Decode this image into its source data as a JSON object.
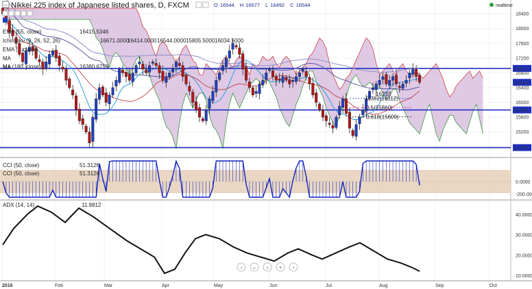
{
  "header": {
    "title": "Nikkei 225 index of Japanese listed shares, D, FXCM",
    "ohlc": [
      {
        "key": "O",
        "value": "16544"
      },
      {
        "key": "H",
        "value": "16577"
      },
      {
        "key": "L",
        "value": "16492"
      },
      {
        "key": "C",
        "value": "16544"
      }
    ],
    "realtime_label": "realtime",
    "realtime_color": "#2e9b3e"
  },
  "indicators": {
    "ema": {
      "label": "EMA (55, close)",
      "value": "16415.5346"
    },
    "ichimoku": {
      "label": "Ichimoku (9, 26, 52, 26)",
      "values": [
        "16671.0000",
        "16414.0000",
        "16544.0000",
        "15805.5000",
        "16034.5000"
      ]
    },
    "ema2": {
      "label": "EMA (…close)"
    },
    "ma_a": {
      "label": "MA"
    },
    "ma_b": {
      "label": "MA"
    },
    "ma180": {
      "label": "MA (180, close)",
      "value": "16380.6759"
    }
  },
  "fib_labels": [
    {
      "text": "0.382(16112)",
      "color": "#1f3fbf"
    },
    {
      "text": "0.5(15860)",
      "color": "#d026b8"
    },
    {
      "text": "0.618(15609)",
      "color": "#222222"
    }
  ],
  "fib_extra": {
    "text": "16233",
    "color": "#1f7fd9"
  },
  "price_axis": {
    "ticks": [
      "18400",
      "18000",
      "17600",
      "17200",
      "16800",
      "16400",
      "16000",
      "15600",
      "15200",
      "14800"
    ],
    "badges": [
      {
        "text": "16921",
        "bg": "#1f2fbf",
        "fg": "#ffffff"
      },
      {
        "text": "16544",
        "bg": "#1f2fbf",
        "fg": "#ffffff"
      },
      {
        "text": "15795",
        "bg": "#1f2fbf",
        "fg": "#ffffff"
      },
      {
        "text": "14776",
        "bg": "#1f2fbf",
        "fg": "#ffffff"
      }
    ]
  },
  "cci": {
    "labels": [
      {
        "text": "CCI (50, close)",
        "value": "51.3126"
      },
      {
        "text": "CCI (50, close)",
        "value": "51.3126"
      }
    ],
    "ticks": [
      "0.0000",
      "-200.0000"
    ]
  },
  "adx": {
    "label": "ADX (14, 14)",
    "value": "11.9812",
    "ticks": [
      "40.0000",
      "30.0000",
      "20.0000",
      "10.0000"
    ]
  },
  "x_axis": [
    "2016",
    "Feb",
    "Mar",
    "Apr",
    "May",
    "Jun",
    "Jul",
    "Aug",
    "Sep",
    "Oct"
  ],
  "colors": {
    "up": "#1f3fbf",
    "down": "#b01818",
    "cloud": "#d9bfe0",
    "cci_band": "#e5d0b8",
    "hline": "#1f2fbf"
  },
  "chart_data": {
    "type": "candlestick",
    "title": "Nikkei 225 index of Japanese listed shares, D, FXCM",
    "price_range": [
      14600,
      18700
    ],
    "resistance_levels": [
      16921,
      15795,
      14776
    ],
    "last_close": 16544,
    "fib_levels": [
      {
        "ratio": 0.382,
        "price": 16112
      },
      {
        "ratio": 0.5,
        "price": 15860
      },
      {
        "ratio": 0.618,
        "price": 15609
      }
    ],
    "series_approx_close": [
      18400,
      18200,
      17900,
      17800,
      17600,
      17300,
      17100,
      17400,
      17500,
      17400,
      17200,
      17100,
      16900,
      17100,
      17300,
      17400,
      17200,
      17000,
      16900,
      16600,
      16400,
      16200,
      15800,
      15500,
      15400,
      15200,
      14900,
      15600,
      16100,
      16400,
      16200,
      16000,
      16200,
      16400,
      16600,
      16900,
      16800,
      16700,
      16600,
      16800,
      17000,
      17100,
      16900,
      16800,
      17000,
      17100,
      17000,
      16800,
      16600,
      16700,
      16800,
      16900,
      17100,
      17000,
      16700,
      16500,
      16300,
      16000,
      15800,
      15600,
      15500,
      15800,
      16100,
      16300,
      16600,
      16800,
      17000,
      17200,
      17400,
      17600,
      17500,
      17300,
      16900,
      16600,
      16400,
      16200,
      16300,
      16500,
      16600,
      16800,
      16900,
      16700,
      16600,
      16600,
      16700,
      16600,
      16500,
      16600,
      16700,
      16800,
      16900,
      16700,
      16500,
      16200,
      16000,
      15800,
      15600,
      15500,
      15400,
      15300,
      15600,
      15900,
      16100,
      15700,
      15300,
      15100,
      15400,
      15600,
      15800,
      16100,
      16300,
      16400,
      16500,
      16600,
      16700,
      16500,
      16600,
      16700,
      16500,
      16400,
      16500,
      16600,
      16800,
      16900,
      16700,
      16544
    ]
  }
}
